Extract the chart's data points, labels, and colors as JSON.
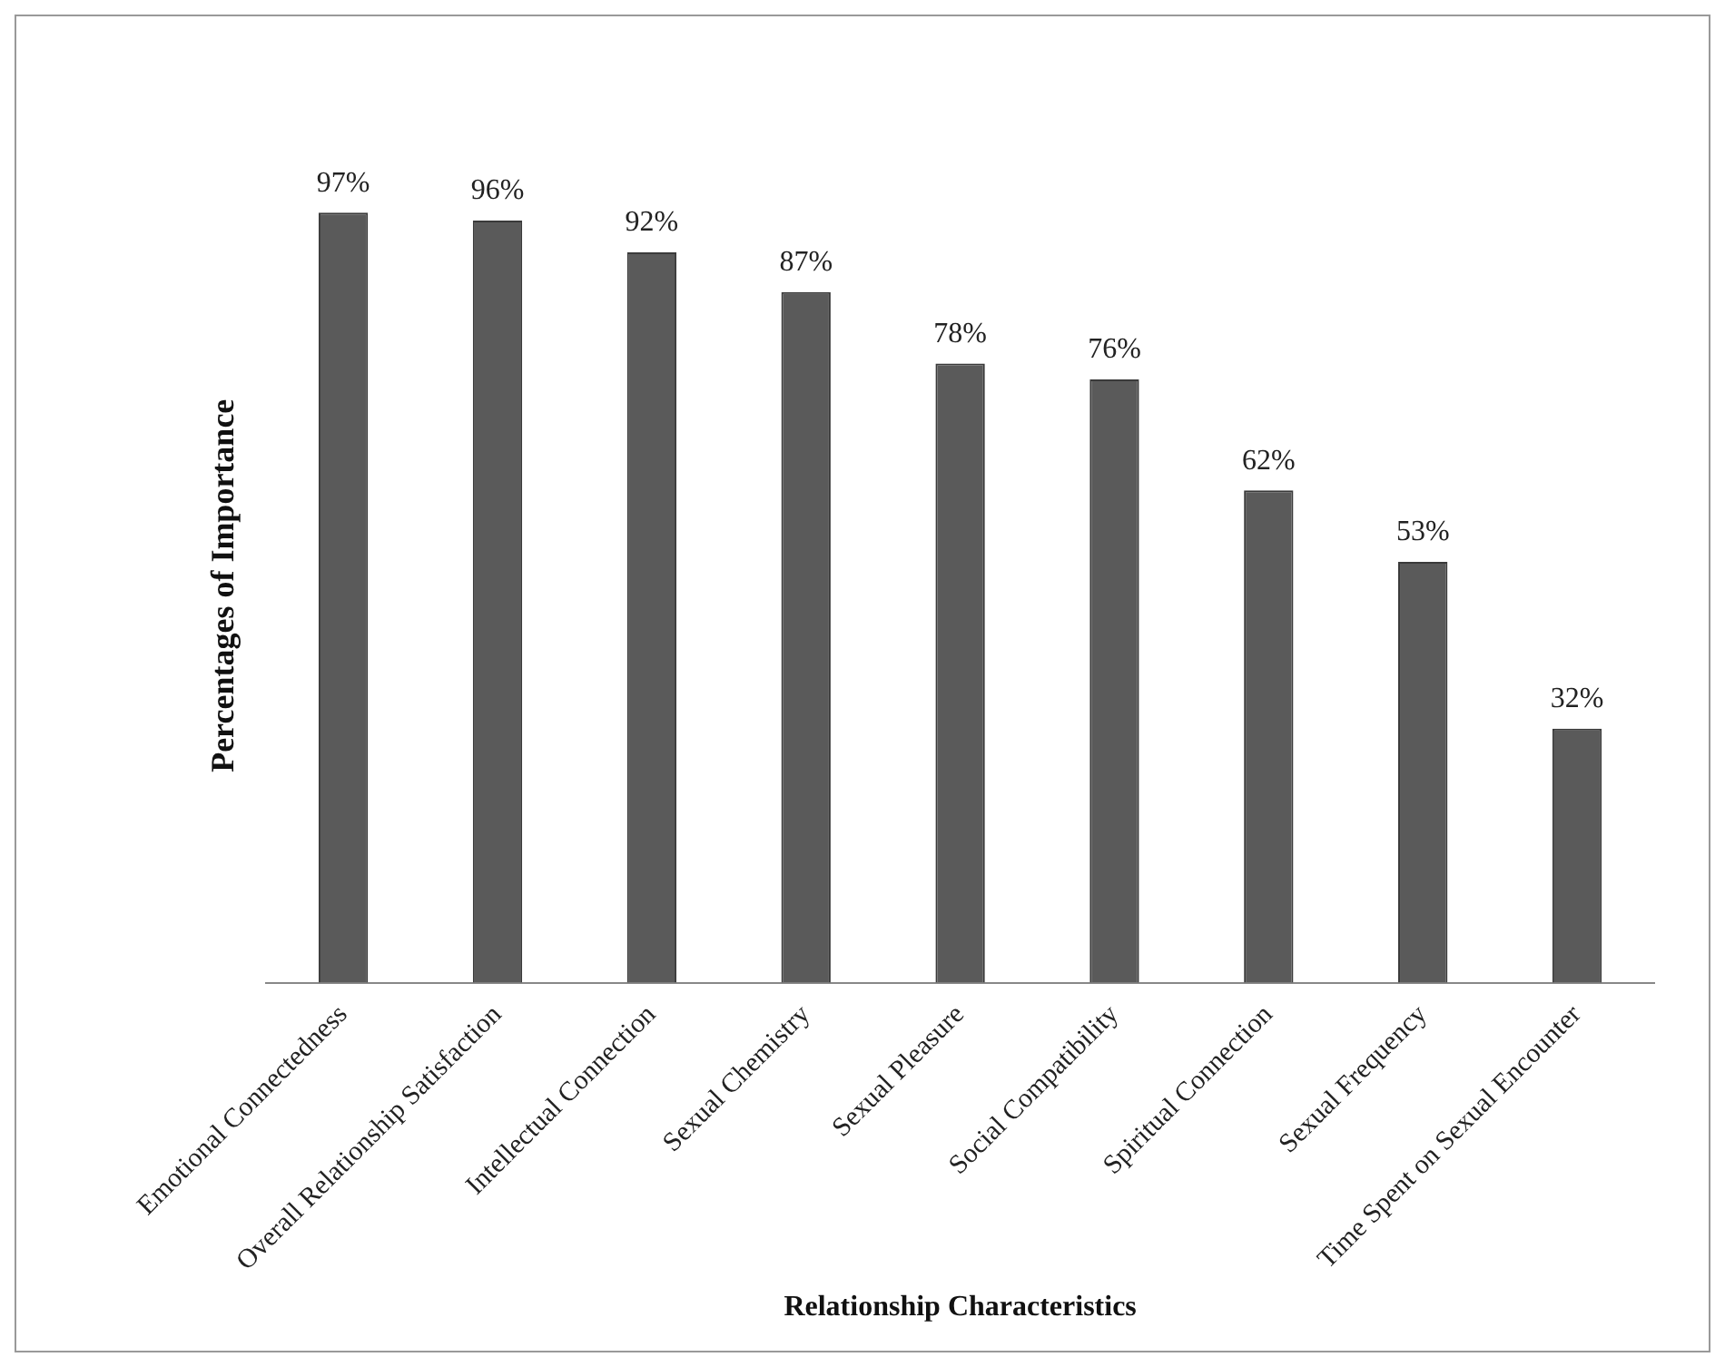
{
  "chart_data": {
    "type": "bar",
    "xlabel": "Relationship Characteristics",
    "ylabel": "Percentages of Importance",
    "categories": [
      "Emotional Connectedness",
      "Overall Relationship Satisfaction",
      "Intellectual Connection",
      "Sexual Chemistry",
      "Sexual Pleasure",
      "Social Compatibility",
      "Spiritual Connection",
      "Sexual Frequency",
      "Time Spent on Sexual Encounter"
    ],
    "values": [
      97,
      96,
      92,
      87,
      78,
      76,
      62,
      53,
      32
    ],
    "value_labels": [
      "97%",
      "96%",
      "92%",
      "87%",
      "78%",
      "76%",
      "62%",
      "53%",
      "32%"
    ],
    "color": "#5a5a5a",
    "grid": false,
    "legend": false
  }
}
